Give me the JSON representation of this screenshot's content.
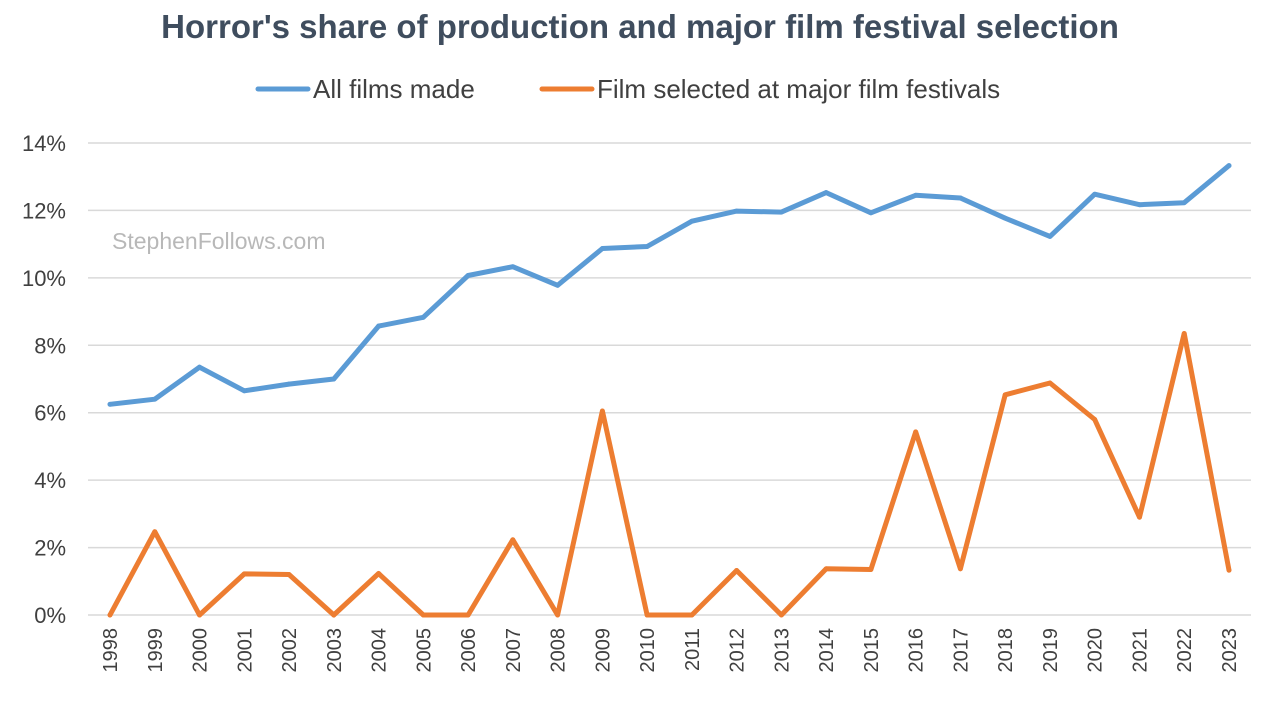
{
  "chart_data": {
    "type": "line",
    "title": "Horror's share of production and major film festival selection",
    "xlabel": "",
    "ylabel": "",
    "ylim": [
      0,
      14
    ],
    "y_ticks": [
      "0%",
      "2%",
      "4%",
      "6%",
      "8%",
      "10%",
      "12%",
      "14%"
    ],
    "y_tick_values": [
      0,
      2,
      4,
      6,
      8,
      10,
      12,
      14
    ],
    "categories": [
      "1998",
      "1999",
      "2000",
      "2001",
      "2002",
      "2003",
      "2004",
      "2005",
      "2006",
      "2007",
      "2008",
      "2009",
      "2010",
      "2011",
      "2012",
      "2013",
      "2014",
      "2015",
      "2016",
      "2017",
      "2018",
      "2019",
      "2020",
      "2021",
      "2022",
      "2023"
    ],
    "legend_position": "top-center",
    "grid": true,
    "watermark": "StephenFollows.com",
    "series": [
      {
        "name": "All films made",
        "color": "#5b9bd5",
        "values": [
          6.25,
          6.4,
          7.35,
          6.65,
          6.85,
          7.0,
          8.57,
          8.83,
          10.07,
          10.33,
          9.78,
          10.87,
          10.93,
          11.68,
          11.98,
          11.95,
          12.53,
          11.93,
          12.45,
          12.37,
          11.77,
          11.23,
          12.48,
          12.17,
          12.23,
          13.33
        ]
      },
      {
        "name": "Film selected at major film festivals",
        "color": "#ed7d31",
        "values": [
          0.0,
          2.47,
          0.0,
          1.22,
          1.2,
          0.0,
          1.23,
          0.0,
          0.0,
          2.23,
          0.0,
          6.05,
          0.0,
          0.0,
          1.32,
          0.0,
          1.37,
          1.35,
          5.43,
          1.37,
          6.53,
          6.88,
          5.8,
          2.9,
          8.35,
          1.33
        ]
      }
    ]
  }
}
